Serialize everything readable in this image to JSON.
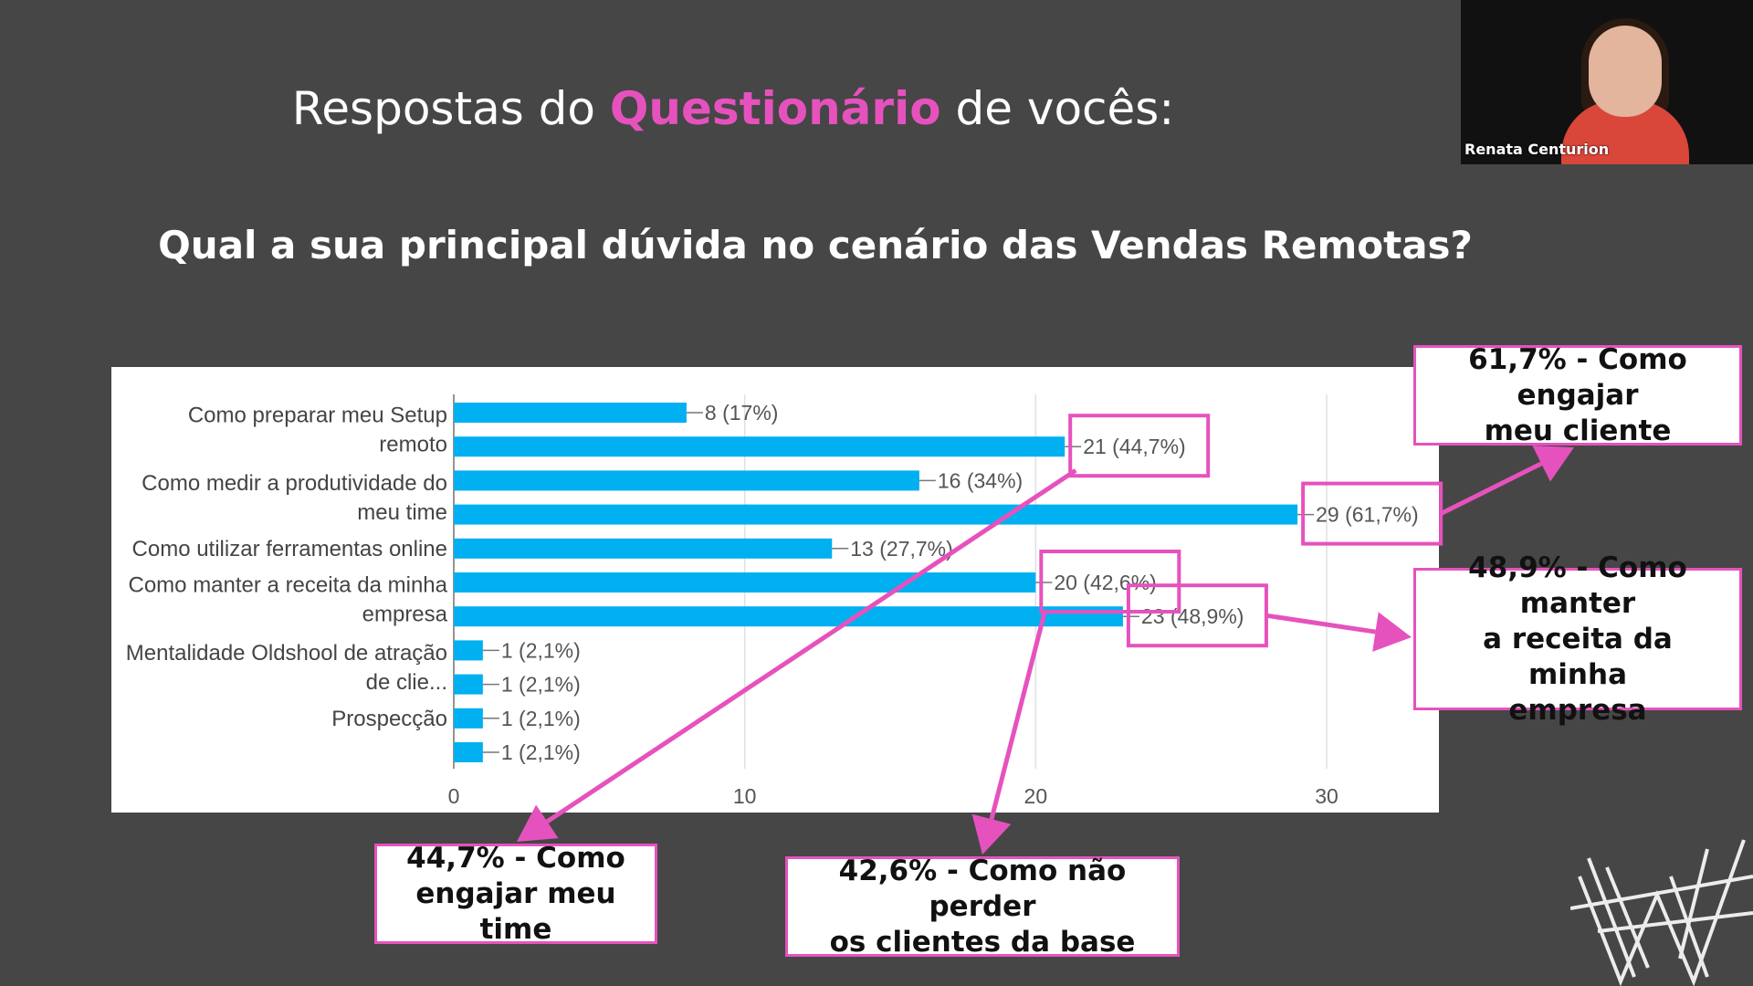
{
  "slide": {
    "title_before": "Respostas do ",
    "title_accent": "Questionário",
    "title_after": " de vocês:",
    "question": "Qual a sua principal dúvida no cenário das Vendas Remotas?"
  },
  "chart_data": {
    "type": "bar",
    "orientation": "horizontal",
    "title": "",
    "xlim": [
      0,
      30
    ],
    "x_ticks": [
      "0",
      "10",
      "20",
      "30"
    ],
    "grid": true,
    "category_labels": [
      {
        "lines": [
          "Como preparar meu Setup",
          "remoto"
        ],
        "rows": [
          0,
          1
        ]
      },
      {
        "lines": [
          "Como medir a produtividade do",
          "meu time"
        ],
        "rows": [
          2,
          3
        ]
      },
      {
        "lines": [
          "Como utilizar ferramentas online"
        ],
        "rows": [
          4
        ]
      },
      {
        "lines": [
          "Como manter a receita da minha",
          "empresa"
        ],
        "rows": [
          5,
          6
        ]
      },
      {
        "lines": [
          "Mentalidade Oldshool de atração",
          "de clie..."
        ],
        "rows": [
          7,
          8
        ]
      },
      {
        "lines": [
          "Prospecção"
        ],
        "rows": [
          9
        ]
      }
    ],
    "values": [
      8,
      21,
      16,
      29,
      13,
      20,
      23,
      1,
      1,
      1,
      1
    ],
    "data_labels": [
      "8 (17%)",
      "21 (44,7%)",
      "16 (34%)",
      "29 (61,7%)",
      "13 (27,7%)",
      "20 (42,6%)",
      "23 (48,9%)",
      "1 (2,1%)",
      "1 (2,1%)",
      "1 (2,1%)",
      "1 (2,1%)"
    ],
    "highlighted_rows": [
      1,
      3,
      5,
      6
    ],
    "bar_color": "#00b0f0",
    "highlight_color": "#e652bd"
  },
  "callouts": {
    "engage_client": {
      "line1": "61,7% - Como engajar",
      "line2": "meu cliente"
    },
    "keep_revenue": {
      "line1": "48,9% - Como manter",
      "line2": "a receita da minha",
      "line3": "empresa"
    },
    "engage_team": {
      "line1": "44,7% - Como",
      "line2": "engajar meu time"
    },
    "keep_clients": {
      "line1": "42,6% - Como não perder",
      "line2": "os clientes da base"
    }
  },
  "webcam": {
    "name": "Renata Centurion"
  },
  "colors": {
    "background": "#464646",
    "accent": "#e652bd",
    "bar": "#00b0f0"
  }
}
